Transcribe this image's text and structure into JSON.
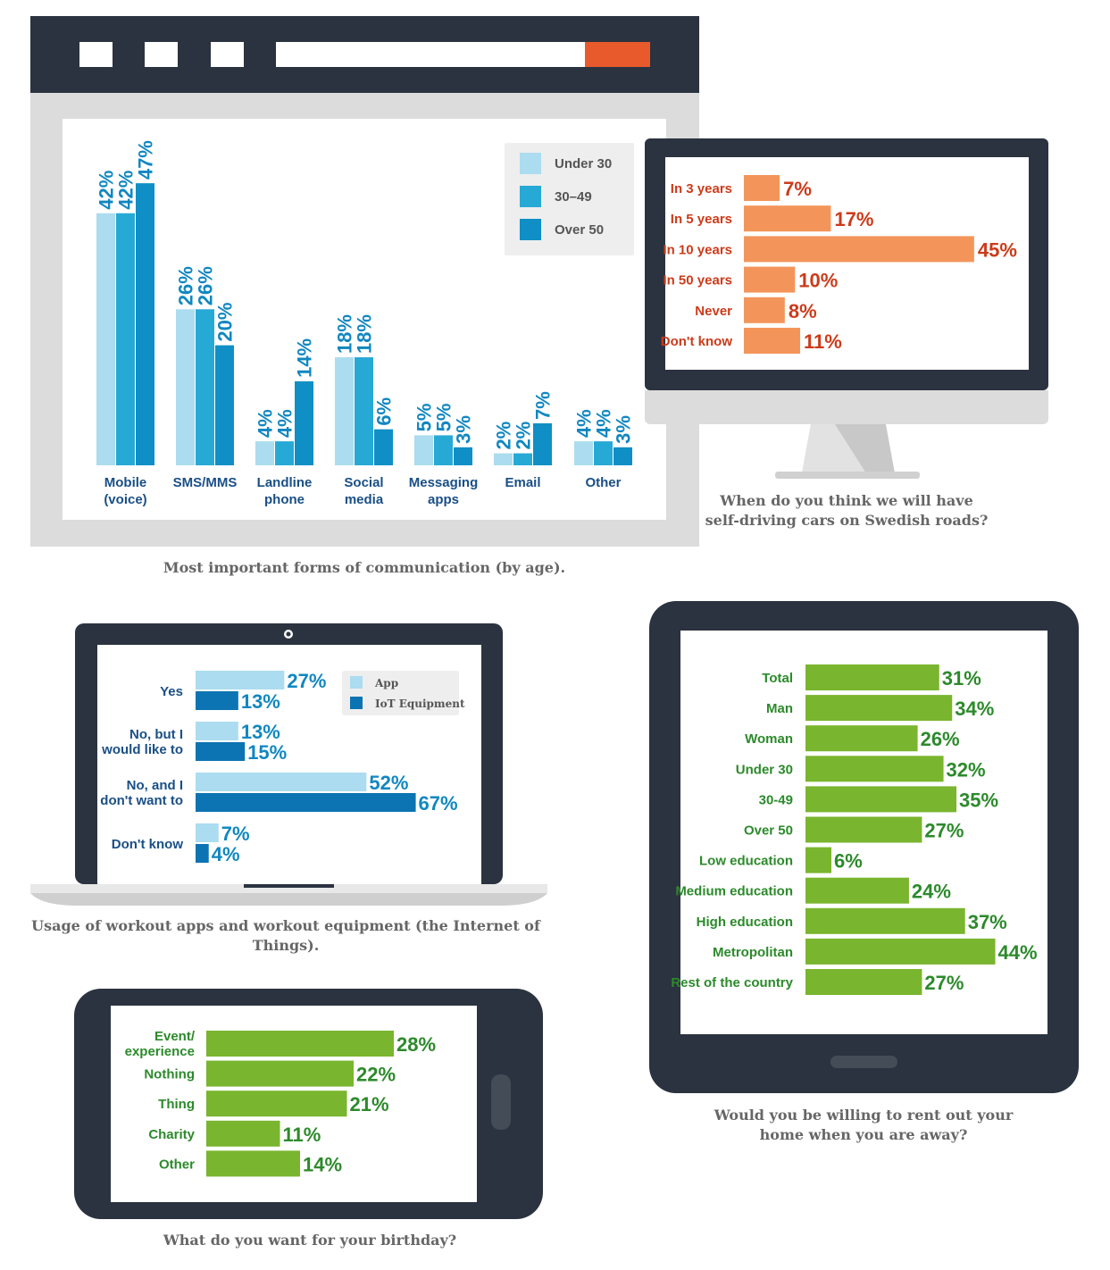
{
  "colors": {
    "frame": "#2b3340",
    "light_blue": "#acdcef",
    "mid_blue": "#27a9d6",
    "dark_blue": "#0f8fc5",
    "iot_blue": "#0c74b2",
    "orange": "#f3955a",
    "red_text": "#cc3b1a",
    "green": "#79b52e",
    "green_text": "#2c8a2b",
    "accent_orange": "#e85a2c"
  },
  "chart_data": [
    {
      "type": "bar",
      "caption": "Most important forms of communication (by age).",
      "categories": [
        "Mobile\n(voice)",
        "SMS/MMS",
        "Landline\nphone",
        "Social\nmedia",
        "Messaging\napps",
        "Email",
        "Other"
      ],
      "series": [
        {
          "name": "Under 30",
          "values": [
            42,
            26,
            4,
            18,
            5,
            2,
            4
          ]
        },
        {
          "name": "30–49",
          "values": [
            42,
            26,
            4,
            18,
            5,
            2,
            4
          ]
        },
        {
          "name": "Over 50",
          "values": [
            47,
            20,
            14,
            6,
            3,
            7,
            3
          ]
        }
      ],
      "value_suffix": "%",
      "legend": "top-right",
      "ylim": [
        0,
        50
      ]
    },
    {
      "type": "bar",
      "orientation": "horizontal",
      "caption": "When do you think we will have\nself-driving cars on Swedish roads?",
      "categories": [
        "In 3 years",
        "In 5 years",
        "In 10 years",
        "In 50 years",
        "Never",
        "Don't know"
      ],
      "values": [
        7,
        17,
        45,
        10,
        8,
        11
      ],
      "value_suffix": "%"
    },
    {
      "type": "bar",
      "orientation": "horizontal",
      "caption": "Usage of workout apps and workout equipment (the Internet of Things).",
      "categories": [
        "Yes",
        "No, but I\nwould like to",
        "No, and I\ndon't want to",
        "Don't know"
      ],
      "series": [
        {
          "name": "App",
          "values": [
            27,
            13,
            52,
            7
          ]
        },
        {
          "name": "IoT Equipment",
          "values": [
            13,
            15,
            67,
            4
          ]
        }
      ],
      "value_suffix": "%",
      "legend": "top-right"
    },
    {
      "type": "bar",
      "orientation": "horizontal",
      "caption": "Would you be willing to rent out your\nhome when you are away?",
      "categories": [
        "Total",
        "Man",
        "Woman",
        "Under 30",
        "30-49",
        "Over 50",
        "Low education",
        "Medium education",
        "High education",
        "Metropolitan",
        "Rest of the country"
      ],
      "values": [
        31,
        34,
        26,
        32,
        35,
        27,
        6,
        24,
        37,
        44,
        27
      ],
      "value_suffix": "%"
    },
    {
      "type": "bar",
      "orientation": "horizontal",
      "caption": "What do you want for your birthday?",
      "categories": [
        "Event/\nexperience",
        "Nothing",
        "Thing",
        "Charity",
        "Other"
      ],
      "values": [
        28,
        22,
        21,
        11,
        14
      ],
      "value_suffix": "%"
    }
  ]
}
